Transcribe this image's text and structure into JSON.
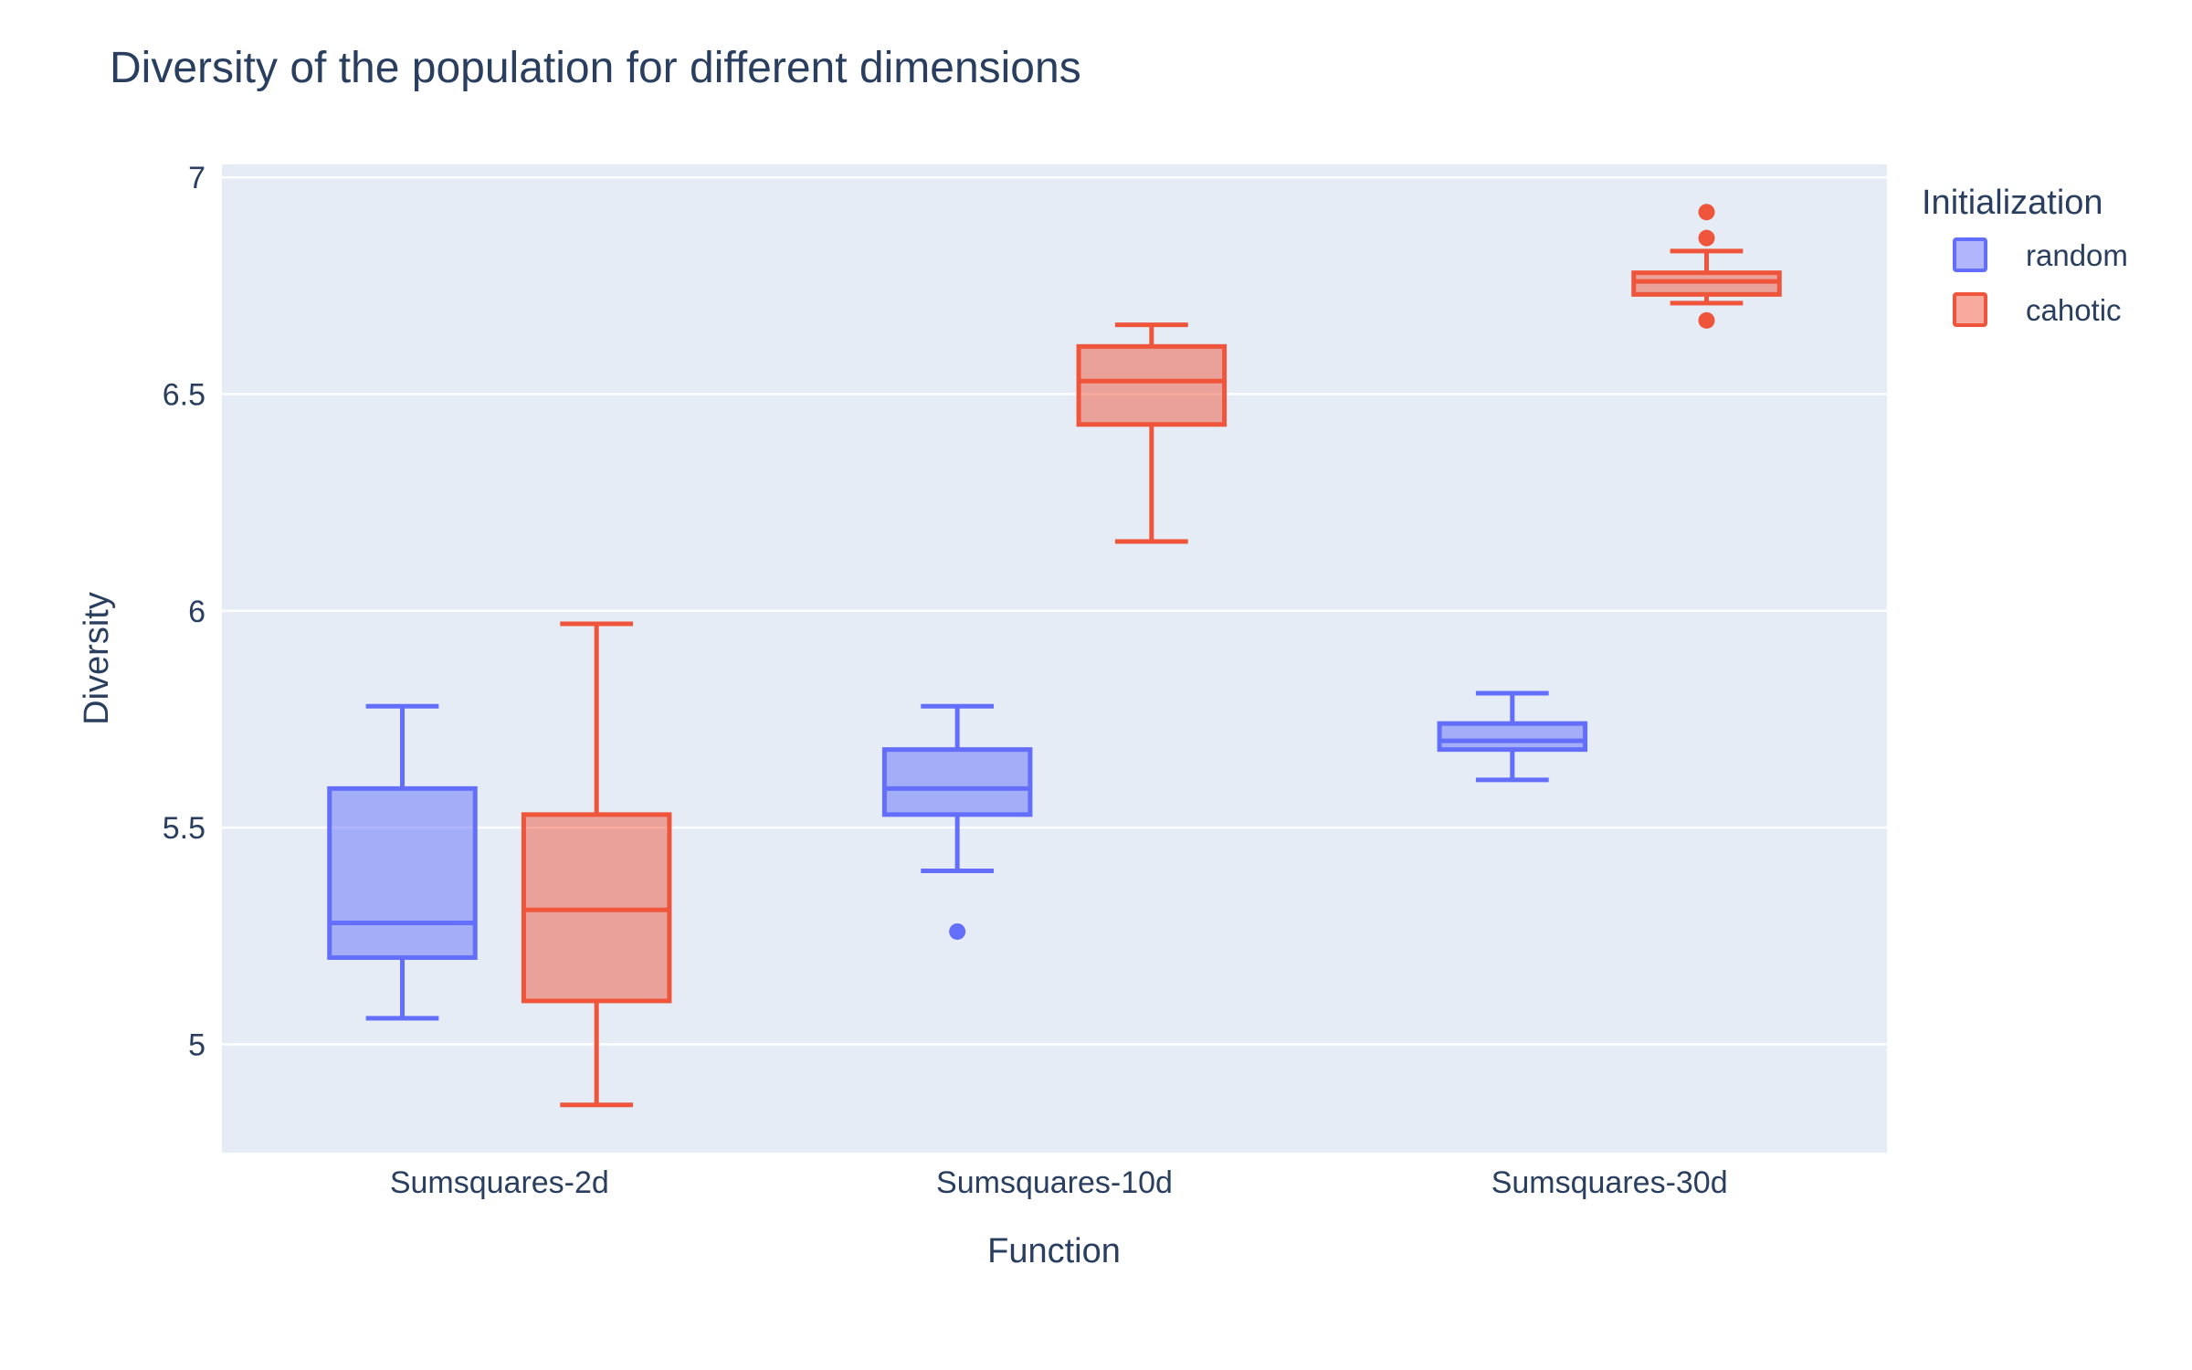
{
  "chart_data": {
    "type": "box",
    "title": "Diversity of the population for different dimensions",
    "xlabel": "Function",
    "ylabel": "Diversity",
    "categories": [
      "Sumsquares-2d",
      "Sumsquares-10d",
      "Sumsquares-30d"
    ],
    "ylim": [
      4.75,
      7.03
    ],
    "yticks": [
      5,
      5.5,
      6,
      6.5,
      7
    ],
    "ytick_labels": [
      "5",
      "5.5",
      "6",
      "6.5",
      "7"
    ],
    "grid": true,
    "legend": {
      "title": "Initialization",
      "position": "top-right"
    },
    "series": [
      {
        "name": "random",
        "line_color": "#636efa",
        "fill_color": "rgba(99,110,250,0.5)",
        "boxes": [
          {
            "min": 5.06,
            "q1": 5.2,
            "median": 5.28,
            "q3": 5.59,
            "max": 5.78,
            "outliers": []
          },
          {
            "min": 5.4,
            "q1": 5.53,
            "median": 5.59,
            "q3": 5.68,
            "max": 5.78,
            "outliers": [
              5.26
            ]
          },
          {
            "min": 5.61,
            "q1": 5.68,
            "median": 5.7,
            "q3": 5.74,
            "max": 5.81,
            "outliers": []
          }
        ]
      },
      {
        "name": "cahotic",
        "line_color": "#ef553b",
        "fill_color": "rgba(239,85,59,0.5)",
        "boxes": [
          {
            "min": 4.86,
            "q1": 5.1,
            "median": 5.31,
            "q3": 5.53,
            "max": 5.97,
            "outliers": []
          },
          {
            "min": 6.16,
            "q1": 6.43,
            "median": 6.53,
            "q3": 6.61,
            "max": 6.66,
            "outliers": []
          },
          {
            "min": 6.71,
            "q1": 6.73,
            "median": 6.76,
            "q3": 6.78,
            "max": 6.83,
            "outliers": [
              6.67,
              6.86,
              6.92
            ]
          }
        ]
      }
    ]
  }
}
